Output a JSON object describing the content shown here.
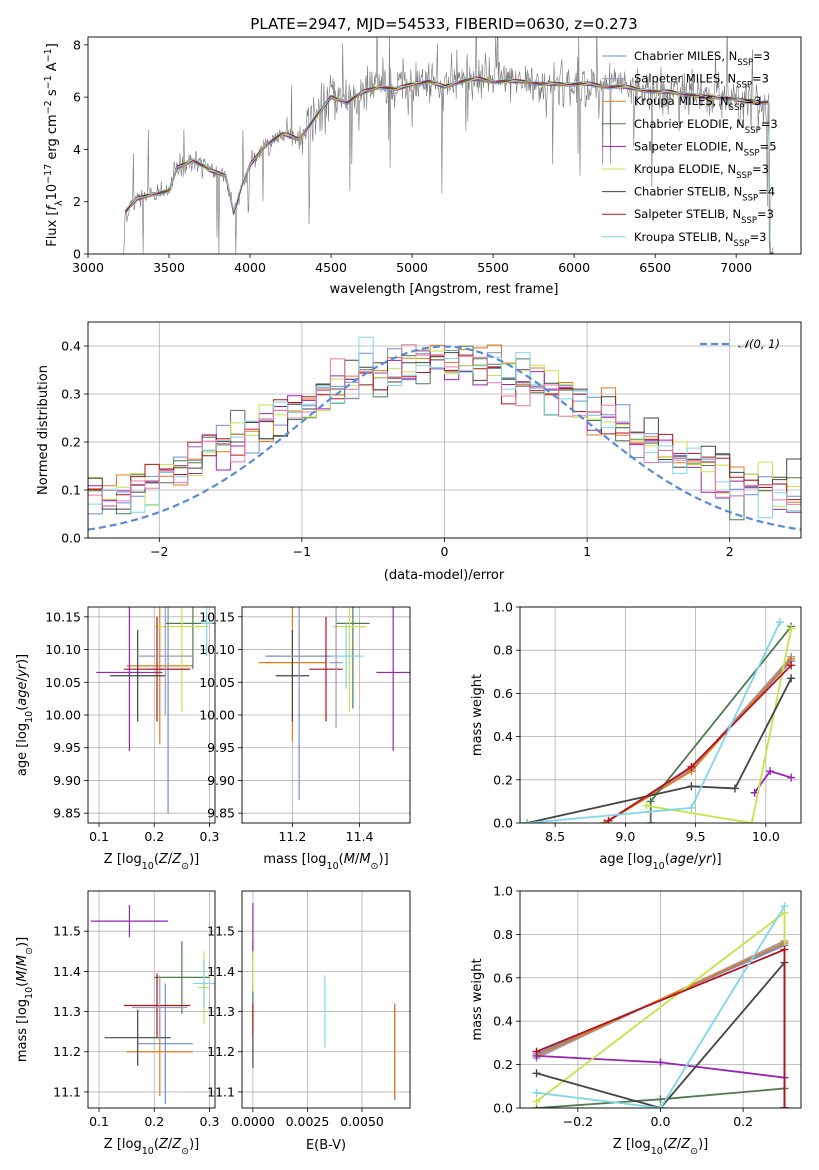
{
  "figure": {
    "title": "PLATE=2947, MJD=54533, FIBERID=0630, z=0.273",
    "series": [
      {
        "name": "Chabrier MILES, N",
        "sub": "SSP",
        "tail": "=3",
        "color": "#6b8fd6"
      },
      {
        "name": "Salpeter MILES, N",
        "sub": "SSP",
        "tail": "=3",
        "color": "#9b9bbb"
      },
      {
        "name": "Kroupa MILES, N",
        "sub": "SSP",
        "tail": "=3",
        "color": "#e07b1a"
      },
      {
        "name": "Chabrier ELODIE, N",
        "sub": "SSP",
        "tail": "=3",
        "color": "#4f7a4f"
      },
      {
        "name": "Salpeter ELODIE, N",
        "sub": "SSP",
        "tail": "=5",
        "color": "#9a22b8"
      },
      {
        "name": "Kroupa ELODIE, N",
        "sub": "SSP",
        "tail": "=3",
        "color": "#c6e34a"
      },
      {
        "name": "Chabrier STELIB, N",
        "sub": "SSP",
        "tail": "=4",
        "color": "#444444"
      },
      {
        "name": "Salpeter STELIB, N",
        "sub": "SSP",
        "tail": "=3",
        "color": "#b5121b"
      },
      {
        "name": "Kroupa STELIB, N",
        "sub": "SSP",
        "tail": "=3",
        "color": "#7fd6e8"
      }
    ],
    "hist_colors": [
      "#6b8fd6",
      "#e07b1a",
      "#4f7a4f",
      "#9a22b8",
      "#c6e34a",
      "#444444",
      "#b5121b",
      "#7fd6e8",
      "#e879a8"
    ],
    "data_color": "#777777",
    "normal_color": "#5b8bd6"
  },
  "chart_data": [
    {
      "id": "spectrum",
      "type": "line",
      "xlabel": "wavelength [Angstrom, rest frame]",
      "ylabel": "Flux [f_λ 10^-17 erg cm^-2 s^-1 A^-1]",
      "xlim": [
        3000,
        7400
      ],
      "ylim": [
        0,
        8.3
      ],
      "xticks": [
        3000,
        3500,
        4000,
        4500,
        5000,
        5500,
        6000,
        6500,
        7000
      ],
      "yticks": [
        0,
        2,
        4,
        6,
        8
      ],
      "continuum": [
        [
          3220,
          0.0
        ],
        [
          3230,
          1.6
        ],
        [
          3300,
          2.1
        ],
        [
          3400,
          2.3
        ],
        [
          3500,
          2.4
        ],
        [
          3550,
          3.3
        ],
        [
          3650,
          3.6
        ],
        [
          3750,
          3.2
        ],
        [
          3850,
          3.0
        ],
        [
          3900,
          1.6
        ],
        [
          3950,
          2.6
        ],
        [
          4000,
          3.4
        ],
        [
          4100,
          4.2
        ],
        [
          4200,
          4.6
        ],
        [
          4300,
          4.4
        ],
        [
          4400,
          5.2
        ],
        [
          4500,
          6.0
        ],
        [
          4600,
          5.8
        ],
        [
          4700,
          6.2
        ],
        [
          4800,
          6.4
        ],
        [
          4900,
          6.3
        ],
        [
          5000,
          6.5
        ],
        [
          5100,
          6.6
        ],
        [
          5200,
          6.4
        ],
        [
          5300,
          6.6
        ],
        [
          5400,
          6.7
        ],
        [
          5500,
          6.6
        ],
        [
          5600,
          6.6
        ],
        [
          5700,
          6.6
        ],
        [
          5800,
          6.5
        ],
        [
          5900,
          6.5
        ],
        [
          6000,
          6.5
        ],
        [
          6100,
          6.5
        ],
        [
          6200,
          6.4
        ],
        [
          6300,
          6.4
        ],
        [
          6400,
          6.3
        ],
        [
          6500,
          6.2
        ],
        [
          6600,
          6.2
        ],
        [
          6700,
          6.1
        ],
        [
          6800,
          6.0
        ],
        [
          6900,
          6.0
        ],
        [
          7000,
          5.9
        ],
        [
          7100,
          5.8
        ],
        [
          7200,
          5.8
        ]
      ]
    },
    {
      "id": "residuals",
      "type": "histogram",
      "xlabel": "(data-model)/error",
      "ylabel": "Normed distribution",
      "xlim": [
        -2.5,
        2.5
      ],
      "ylim": [
        0,
        0.45
      ],
      "xticks": [
        -2,
        -1,
        0,
        1,
        2
      ],
      "yticks": [
        0.0,
        0.1,
        0.2,
        0.3,
        0.4
      ],
      "legend": "𝒩(0, 1)",
      "bin_width": 0.1
    },
    {
      "id": "age_vs_Z",
      "type": "scatter",
      "xlabel": "Z [log10(Z/Z⊙)]",
      "ylabel": "age  [log10(age/yr)]",
      "xlim": [
        0.08,
        0.31
      ],
      "ylim": [
        9.835,
        10.165
      ],
      "xticks": [
        0.1,
        0.2,
        0.3
      ],
      "yticks": [
        9.85,
        9.9,
        9.95,
        10.0,
        10.05,
        10.1,
        10.15
      ],
      "points": [
        {
          "s": 0,
          "x": 0.225,
          "y": 10.07,
          "xe": 0.04,
          "ye": 0.22
        },
        {
          "s": 2,
          "x": 0.21,
          "y": 10.075,
          "xe": 0.06,
          "ye": 0.12
        },
        {
          "s": 3,
          "x": 0.27,
          "y": 10.14,
          "xe": 0.05,
          "ye": 0.07
        },
        {
          "s": 4,
          "x": 0.155,
          "y": 10.065,
          "xe": 0.06,
          "ye": 0.12
        },
        {
          "s": 5,
          "x": 0.25,
          "y": 10.135,
          "xe": 0.05,
          "ye": 0.13
        },
        {
          "s": 6,
          "x": 0.17,
          "y": 10.06,
          "xe": 0.05,
          "ye": 0.07
        },
        {
          "s": 7,
          "x": 0.205,
          "y": 10.07,
          "xe": 0.06,
          "ye": 0.08
        },
        {
          "s": 8,
          "x": 0.295,
          "y": 10.14,
          "xe": 0.01,
          "ye": 0.05
        },
        {
          "s": 1,
          "x": 0.22,
          "y": 10.09,
          "xe": 0.05,
          "ye": 0.09
        }
      ]
    },
    {
      "id": "age_vs_mass",
      "type": "scatter",
      "xlabel": "mass [log10(M/M⊙)]",
      "ylabel": "",
      "xlim": [
        11.05,
        11.55
      ],
      "ylim": [
        9.835,
        10.165
      ],
      "xticks": [
        11.2,
        11.4
      ],
      "yticks": [
        9.85,
        9.9,
        9.95,
        10.0,
        10.05,
        10.1,
        10.15
      ],
      "points": [
        {
          "s": 0,
          "x": 11.22,
          "y": 10.09,
          "xe": 0.1,
          "ye": 0.22
        },
        {
          "s": 2,
          "x": 11.2,
          "y": 10.08,
          "xe": 0.1,
          "ye": 0.12
        },
        {
          "s": 3,
          "x": 11.38,
          "y": 10.14,
          "xe": 0.05,
          "ye": 0.13
        },
        {
          "s": 4,
          "x": 11.5,
          "y": 10.065,
          "xe": 0.05,
          "ye": 0.12
        },
        {
          "s": 5,
          "x": 11.37,
          "y": 10.135,
          "xe": 0.05,
          "ye": 0.13
        },
        {
          "s": 6,
          "x": 11.2,
          "y": 10.06,
          "xe": 0.05,
          "ye": 0.07
        },
        {
          "s": 7,
          "x": 11.3,
          "y": 10.07,
          "xe": 0.05,
          "ye": 0.08
        },
        {
          "s": 8,
          "x": 11.36,
          "y": 10.09,
          "xe": 0.05,
          "ye": 0.05
        },
        {
          "s": 1,
          "x": 11.22,
          "y": 10.09,
          "xe": 0.05,
          "ye": 0.09
        },
        {
          "s": 1,
          "x": 11.33,
          "y": 10.08,
          "xe": 0.02,
          "ye": 0.1
        }
      ]
    },
    {
      "id": "weight_vs_age",
      "type": "line",
      "xlabel": "age  [log10(age/yr)]",
      "ylabel": "mass weight",
      "xlim": [
        8.25,
        10.25
      ],
      "ylim": [
        0,
        1
      ],
      "xticks": [
        8.5,
        9.0,
        9.5,
        10.0
      ],
      "yticks": [
        0.0,
        0.2,
        0.4,
        0.6,
        0.8,
        1.0
      ],
      "lines": [
        {
          "s": 0,
          "x": [
            8.85,
            9.47,
            10.18
          ],
          "y": [
            0.0,
            0.25,
            0.75
          ]
        },
        {
          "s": 1,
          "x": [
            8.85,
            9.47,
            10.18
          ],
          "y": [
            0.0,
            0.25,
            0.77
          ]
        },
        {
          "s": 2,
          "x": [
            8.85,
            9.47,
            10.18
          ],
          "y": [
            0.0,
            0.24,
            0.76
          ]
        },
        {
          "s": 3,
          "x": [
            9.18,
            9.18,
            10.18
          ],
          "y": [
            0.0,
            0.1,
            0.91
          ]
        },
        {
          "s": 4,
          "x": [
            9.92,
            10.03,
            10.18
          ],
          "y": [
            0.14,
            0.24,
            0.21
          ]
        },
        {
          "s": 5,
          "x": [
            9.15,
            9.9,
            10.18
          ],
          "y": [
            0.08,
            0.0,
            0.9
          ]
        },
        {
          "s": 6,
          "x": [
            8.3,
            9.47,
            9.78,
            10.18
          ],
          "y": [
            0.0,
            0.17,
            0.16,
            0.67
          ]
        },
        {
          "s": 7,
          "x": [
            8.88,
            9.47,
            10.18
          ],
          "y": [
            0.01,
            0.26,
            0.73
          ]
        },
        {
          "s": 8,
          "x": [
            8.3,
            9.47,
            10.1
          ],
          "y": [
            0.0,
            0.07,
            0.93
          ]
        }
      ]
    },
    {
      "id": "mass_vs_Z",
      "type": "scatter",
      "xlabel": "Z [log10(Z/Z⊙)]",
      "ylabel": "mass [log10(M/M⊙)]",
      "xlim": [
        0.08,
        0.31
      ],
      "ylim": [
        11.06,
        11.6
      ],
      "xticks": [
        0.1,
        0.2,
        0.3
      ],
      "yticks": [
        11.1,
        11.2,
        11.3,
        11.4,
        11.5
      ],
      "points": [
        {
          "s": 0,
          "x": 0.22,
          "y": 11.22,
          "xe": 0.05,
          "ye": 0.15
        },
        {
          "s": 2,
          "x": 0.21,
          "y": 11.2,
          "xe": 0.06,
          "ye": 0.11
        },
        {
          "s": 3,
          "x": 0.25,
          "y": 11.385,
          "xe": 0.05,
          "ye": 0.09
        },
        {
          "s": 4,
          "x": 0.155,
          "y": 11.525,
          "xe": 0.07,
          "ye": 0.04
        },
        {
          "s": 5,
          "x": 0.29,
          "y": 11.36,
          "xe": 0.01,
          "ye": 0.09
        },
        {
          "s": 6,
          "x": 0.17,
          "y": 11.235,
          "xe": 0.06,
          "ye": 0.07
        },
        {
          "s": 7,
          "x": 0.205,
          "y": 11.315,
          "xe": 0.06,
          "ye": 0.08
        },
        {
          "s": 8,
          "x": 0.29,
          "y": 11.37,
          "xe": 0.02,
          "ye": 0.06
        },
        {
          "s": 1,
          "x": 0.21,
          "y": 11.31,
          "xe": 0.05,
          "ye": 0.08
        }
      ]
    },
    {
      "id": "mass_vs_ebv",
      "type": "scatter",
      "xlabel": "E(B-V)",
      "ylabel": "",
      "xlim": [
        -0.0005,
        0.0072
      ],
      "ylim": [
        11.06,
        11.6
      ],
      "xticks": [
        0.0,
        0.0025,
        0.005
      ],
      "ytick_labels": [
        11.1,
        11.2,
        11.3,
        11.4,
        11.5
      ],
      "points": [
        {
          "s": 0,
          "x": 0.0065,
          "y": 11.2,
          "xe": 0,
          "ye": 0.12
        },
        {
          "s": 2,
          "x": 0.0065,
          "y": 11.2,
          "xe": 0,
          "ye": 0.12
        },
        {
          "s": 3,
          "x": 0.0,
          "y": 11.38,
          "xe": 0,
          "ye": 0.1
        },
        {
          "s": 4,
          "x": 0.0,
          "y": 11.5,
          "xe": 0,
          "ye": 0.07
        },
        {
          "s": 5,
          "x": 0.0,
          "y": 11.4,
          "xe": 0,
          "ye": 0.05
        },
        {
          "s": 6,
          "x": 0.0,
          "y": 11.23,
          "xe": 0,
          "ye": 0.07
        },
        {
          "s": 7,
          "x": 0.0,
          "y": 11.28,
          "xe": 0,
          "ye": 0.04
        },
        {
          "s": 8,
          "x": 0.0033,
          "y": 11.3,
          "xe": 0,
          "ye": 0.09
        }
      ]
    },
    {
      "id": "weight_vs_Z",
      "type": "line",
      "xlabel": "Z [log10(Z/Z⊙)]",
      "ylabel": "mass weight",
      "xlim": [
        -0.34,
        0.34
      ],
      "ylim": [
        0,
        1
      ],
      "xticks": [
        -0.2,
        0.0,
        0.2
      ],
      "yticks": [
        0.0,
        0.2,
        0.4,
        0.6,
        0.8,
        1.0
      ],
      "lines": [
        {
          "s": 0,
          "x": [
            -0.3,
            0.3,
            0.3
          ],
          "y": [
            0.25,
            0.75,
            0.0
          ]
        },
        {
          "s": 1,
          "x": [
            -0.3,
            0.3,
            0.3
          ],
          "y": [
            0.23,
            0.77,
            0.0
          ]
        },
        {
          "s": 2,
          "x": [
            -0.3,
            0.3,
            0.3
          ],
          "y": [
            0.24,
            0.76,
            0.0
          ]
        },
        {
          "s": 3,
          "x": [
            -0.3,
            0.0,
            0.3
          ],
          "y": [
            0.0,
            0.04,
            0.09
          ]
        },
        {
          "s": 4,
          "x": [
            -0.3,
            0.0,
            0.3
          ],
          "y": [
            0.24,
            0.21,
            0.14
          ]
        },
        {
          "s": 5,
          "x": [
            -0.3,
            0.3,
            0.3
          ],
          "y": [
            0.03,
            0.9,
            0.0
          ]
        },
        {
          "s": 6,
          "x": [
            -0.3,
            0.0,
            0.3,
            0.3
          ],
          "y": [
            0.16,
            0.0,
            0.67,
            0.0
          ]
        },
        {
          "s": 7,
          "x": [
            -0.3,
            0.3,
            0.3
          ],
          "y": [
            0.26,
            0.73,
            0.0
          ]
        },
        {
          "s": 8,
          "x": [
            -0.3,
            0.0,
            0.3
          ],
          "y": [
            0.07,
            0.0,
            0.93
          ]
        }
      ]
    }
  ]
}
